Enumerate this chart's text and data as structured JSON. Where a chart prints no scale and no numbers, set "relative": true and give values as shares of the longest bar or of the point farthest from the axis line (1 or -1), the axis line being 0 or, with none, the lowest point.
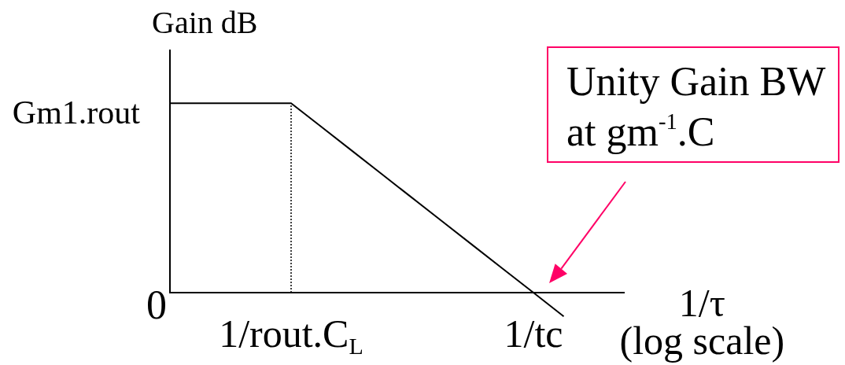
{
  "chart_data": {
    "type": "line",
    "relative": true,
    "ylabel": "Gain dB",
    "xlabel": "1/τ (log scale)",
    "categories": [
      null,
      null,
      null,
      null,
      "1/rout.C$_{L}$",
      null,
      null,
      null,
      null,
      null,
      null,
      null,
      "1/tc",
      null,
      null,
      null
    ],
    "series": [
      {
        "color": "#000000",
        "values": [
          1,
          1,
          1,
          1,
          1,
          0.875,
          0.75,
          0.625,
          0.5,
          0.375,
          0.25,
          0.125,
          0,
          -0.125,
          null,
          null
        ]
      }
    ],
    "ref_lines": [
      {
        "axis": "x",
        "value": "1/rout.C$_{L}$",
        "line_style": "dotted",
        "color": "#000000"
      }
    ],
    "annotations": [
      "Gm1.rout",
      "0",
      "Unity Gain BW at gm$^{-1}$.C"
    ],
    "grid": false,
    "legend": false,
    "marker": "none"
  }
}
